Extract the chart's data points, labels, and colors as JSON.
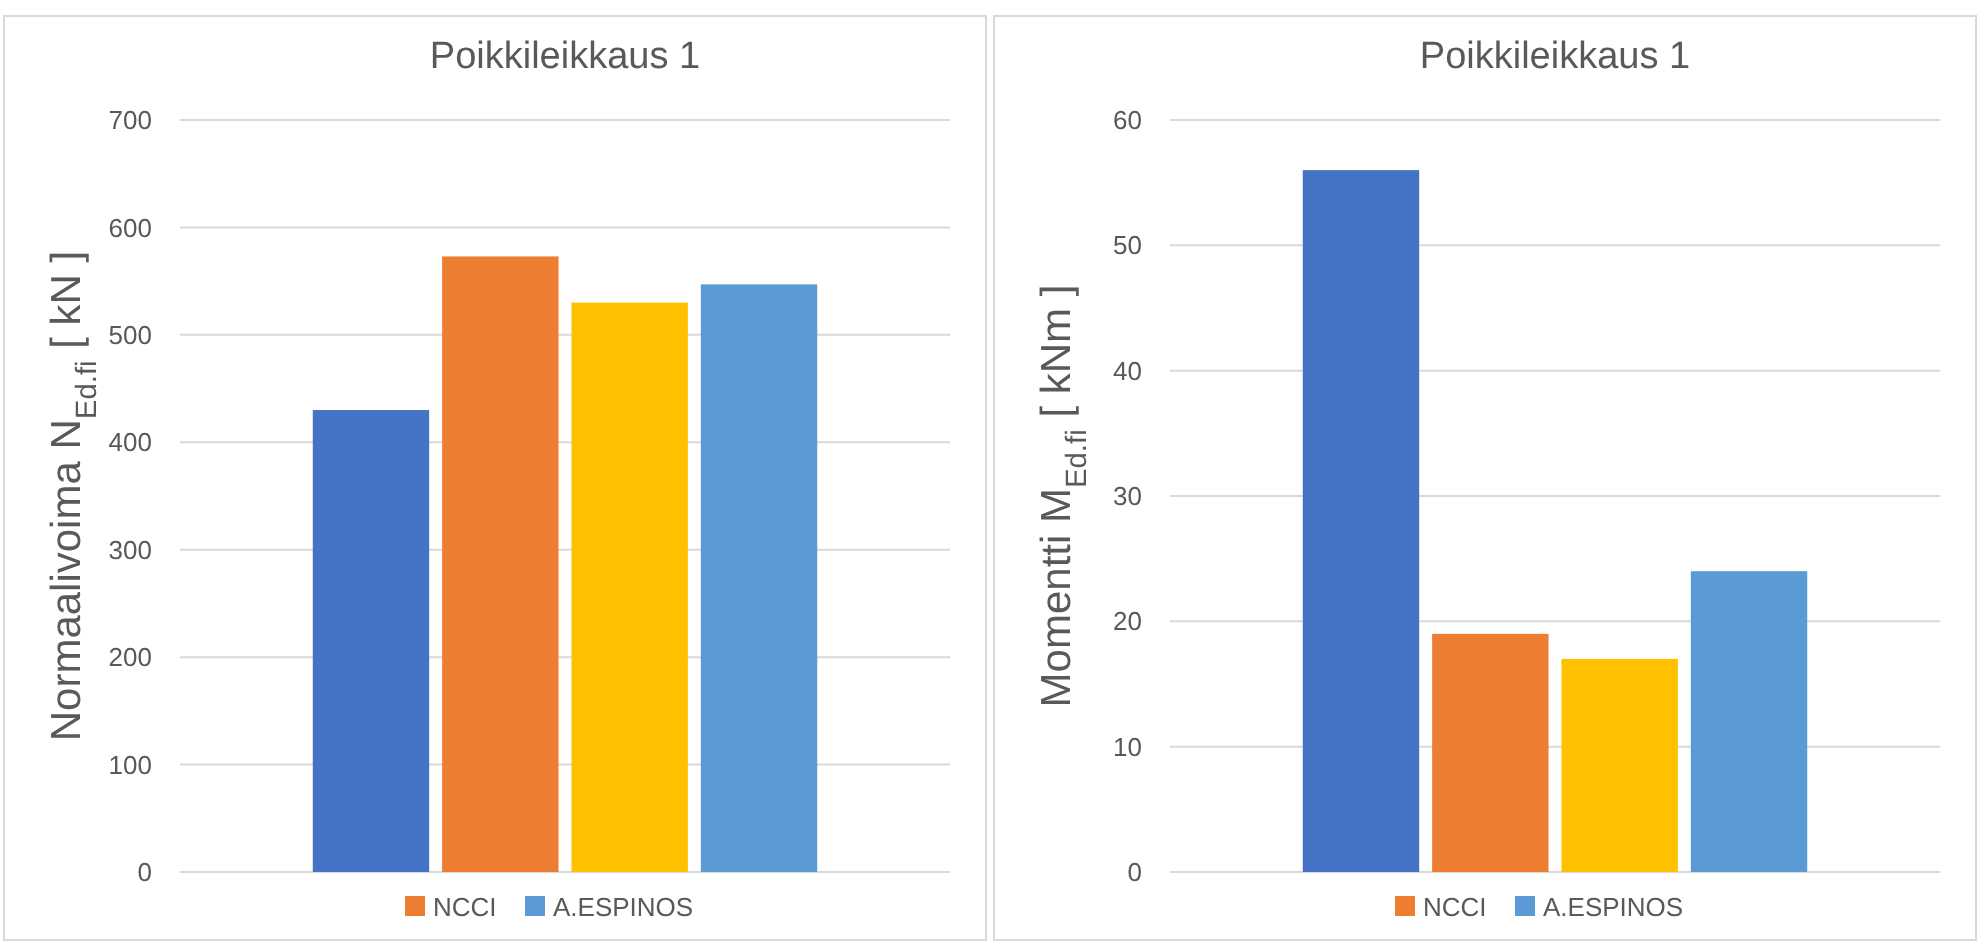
{
  "chart_data": [
    {
      "type": "bar",
      "title": "Poikkileikkaus 1",
      "ylabel": "Normaalivoima  N$_{Ed.fi}$  [ kN ]",
      "categories": [
        null
      ],
      "ylim": [
        0,
        700
      ],
      "yticks": [
        0,
        100,
        200,
        300,
        400,
        500,
        600,
        700
      ],
      "grid": "y",
      "legend": "bottom",
      "series": [
        {
          "color": "#4472c4",
          "values": [
            430
          ]
        },
        {
          "name": "NCCI",
          "color": "#ed7d31",
          "values": [
            573
          ]
        },
        {
          "color": "#ffc000",
          "values": [
            530
          ]
        },
        {
          "name": "A.ESPINOS",
          "color": "#5b9bd5",
          "values": [
            547
          ]
        }
      ]
    },
    {
      "type": "bar",
      "title": "Poikkileikkaus 1",
      "ylabel": "Momentti   M$_{Ed.fi}$  [ kNm ]",
      "categories": [
        null
      ],
      "ylim": [
        0,
        60
      ],
      "yticks": [
        0,
        10,
        20,
        30,
        40,
        50,
        60
      ],
      "grid": "y",
      "legend": "bottom",
      "series": [
        {
          "color": "#4472c4",
          "values": [
            56
          ]
        },
        {
          "name": "NCCI",
          "color": "#ed7d31",
          "values": [
            19
          ]
        },
        {
          "color": "#ffc000",
          "values": [
            17
          ]
        },
        {
          "name": "A.ESPINOS",
          "color": "#5b9bd5",
          "values": [
            24
          ]
        }
      ]
    }
  ]
}
